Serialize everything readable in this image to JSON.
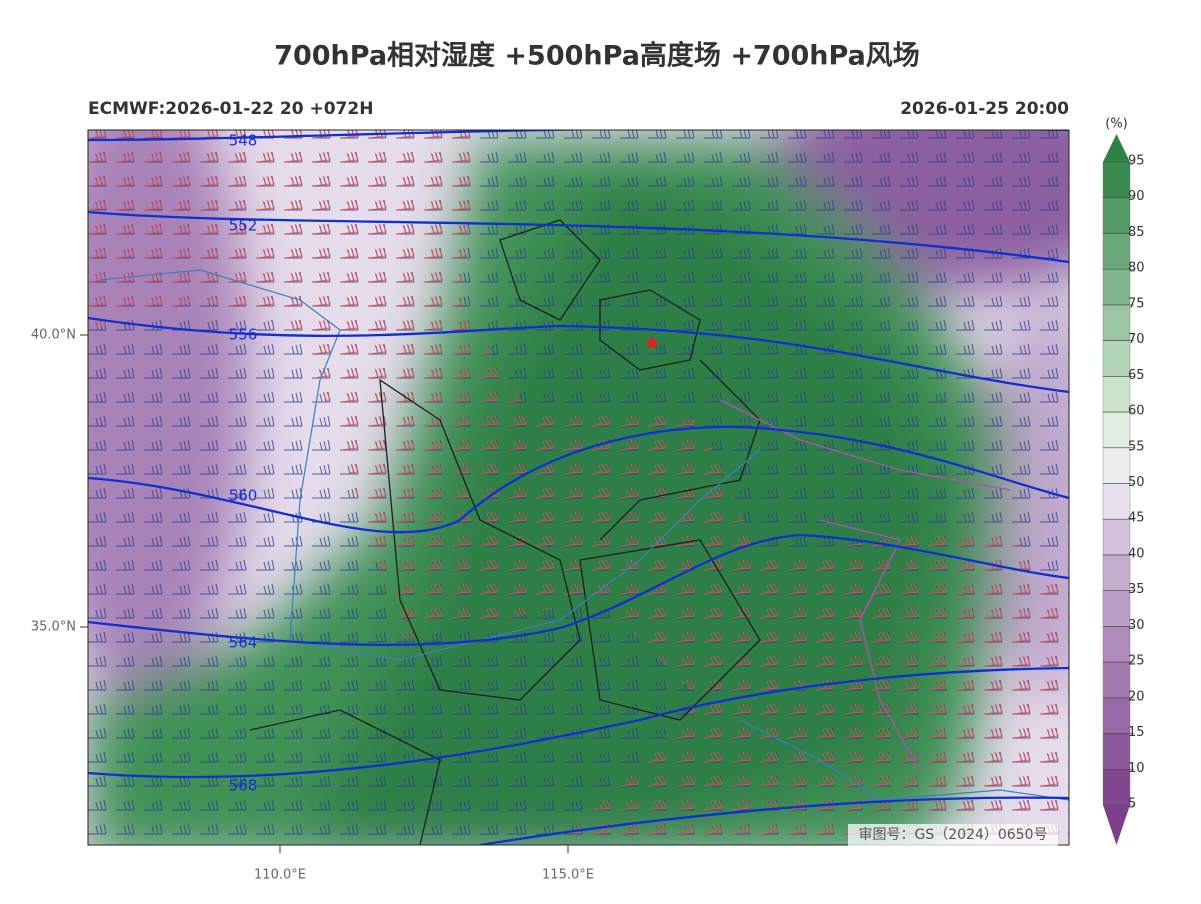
{
  "title": "700hPa相对湿度 +500hPa高度场 +700hPa风场",
  "model_run": "ECMWF:2026-01-22 20 +072H",
  "valid_time": "2026-01-25 20:00",
  "colorbar": {
    "unit": "(%)",
    "levels": [
      5,
      10,
      15,
      20,
      25,
      30,
      35,
      40,
      45,
      50,
      55,
      60,
      65,
      70,
      75,
      80,
      85,
      90,
      95
    ]
  },
  "lat_ticks": [
    {
      "value": 40,
      "label": "40.0°N"
    },
    {
      "value": 35,
      "label": "35.0°N"
    }
  ],
  "lon_ticks": [
    {
      "value": 110,
      "label": "110.0°E"
    },
    {
      "value": 115,
      "label": "115.0°E"
    }
  ],
  "contour_labels": [
    548,
    552,
    556,
    560,
    564,
    568
  ],
  "approval_number": "审图号：GS（2024）0650号"
}
